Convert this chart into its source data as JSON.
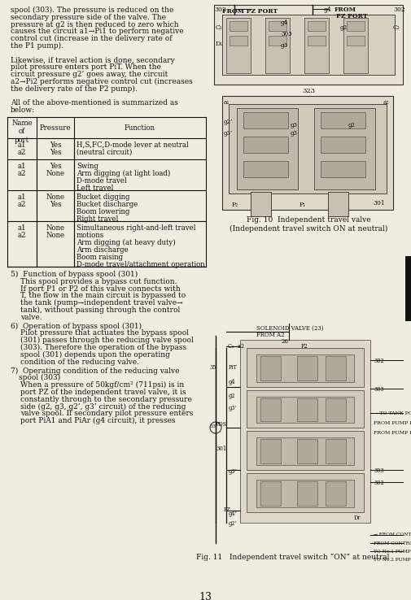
{
  "page_number": "13",
  "bg": "#f0ece0",
  "fg": "#111111",
  "left_text_lines": [
    "spool (303). The pressure is reduced on the",
    "secondary pressure side of the valve. The",
    "pressure at g2 is then reduced to zero which",
    "causes the circuit a1→Pi1 to perform negative",
    "control cut (increase in the delivery rate of",
    "the P1 pump).",
    "",
    "Likewise, if travel action is done, secondary",
    "pilot pressure enters port PiT. When the",
    "circuit pressure g2’ goes away, the circuit",
    "a2→Pi2 performs negative control cut (increases",
    "the delivery rate of the P2 pump).",
    "",
    "All of the above-mentioned is summarized as",
    "below:"
  ],
  "table_header": [
    "Name\nof\nport",
    "Pressure",
    "Function"
  ],
  "table_rows": [
    [
      "a1\na2",
      "Yes\nYes",
      "H,S,FC,D-mode lever at neutral\n(neutral circuit)"
    ],
    [
      "a1\na2",
      "Yes\nNone",
      "Swing\nArm digging (at light load)\nD-mode travel\nLeft travel"
    ],
    [
      "a1\na2",
      "None\nYes",
      "Bucket digging\nBucket discharge\nBoom lowering\nRight travel"
    ],
    [
      "a1\na2",
      "None\nNone",
      "Simultaneous right-and-left travel\nmotions\nArm digging (at heavy duty)\nArm discharge\nBoom raising\nD-mode travel/attachment operation"
    ]
  ],
  "sections": [
    {
      "num": "5)",
      "title": "Function of bypass spool (301)",
      "lines": [
        "This spool provides a bypass cut function.",
        "If port P1 or P2 of this valve connects with",
        "T, the flow in the main circuit is bypassed to",
        "the tank (pump→independent travel valve→",
        "tank), without passing through the control",
        "valve."
      ]
    },
    {
      "num": "6)",
      "title": "Operation of bypass spool (301)",
      "lines": [
        "Pilot pressure that actuates the bypass spool",
        "(301) passes through the reducing valve spool",
        "(303). Therefore the operation of the bypass",
        "spool (301) depends upon the operating",
        "condition of the reducing valve."
      ]
    },
    {
      "num": "7)",
      "title": "Operating condition of the reducing valve",
      "title2": "spool (303)",
      "lines": [
        "When a pressure of 50kgf/cm² (711psi) is in",
        "port PZ of the independent travel valve, it is",
        "constantly through to the secondary pressure",
        "side (g2, g3, g2’, g3’ circuit) of the reducing",
        "valve spool. If secondary pilot pressure enters",
        "port PiA1 and PiAr (g4 circuit), it presses"
      ]
    }
  ],
  "fig10_caption": "Fig. 10  Independent travel valve\n(Independent travel switch ON at neutral)",
  "fig11_caption": "Fig. 11   Independent travel switch “ON” at neutral"
}
